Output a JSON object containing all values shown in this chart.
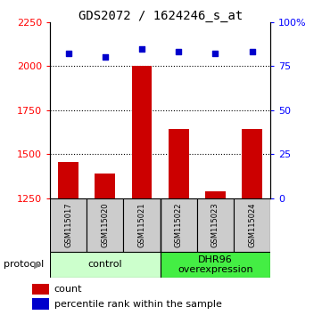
{
  "title": "GDS2072 / 1624246_s_at",
  "samples": [
    "GSM115017",
    "GSM115020",
    "GSM115021",
    "GSM115022",
    "GSM115023",
    "GSM115024"
  ],
  "counts": [
    1455,
    1390,
    2000,
    1645,
    1290,
    1645
  ],
  "percentile_ranks": [
    82,
    80,
    85,
    83,
    82,
    83
  ],
  "ymin": 1250,
  "ymax": 2250,
  "yticks_left": [
    1250,
    1500,
    1750,
    2000,
    2250
  ],
  "yticks_right": [
    0,
    25,
    50,
    75,
    100
  ],
  "bar_color": "#cc0000",
  "dot_color": "#0000cc",
  "groups": [
    {
      "label": "control",
      "span": [
        0,
        2
      ],
      "color": "#ccffcc"
    },
    {
      "label": "DHR96\noverexpression",
      "span": [
        3,
        5
      ],
      "color": "#44ee44"
    }
  ],
  "group_label": "protocol",
  "legend_items": [
    {
      "color": "#cc0000",
      "label": "count"
    },
    {
      "color": "#0000cc",
      "label": "percentile rank within the sample"
    }
  ],
  "sample_box_color": "#cccccc",
  "title_fontsize": 10,
  "tick_fontsize": 8,
  "sample_fontsize": 6,
  "group_fontsize": 8,
  "legend_fontsize": 8
}
